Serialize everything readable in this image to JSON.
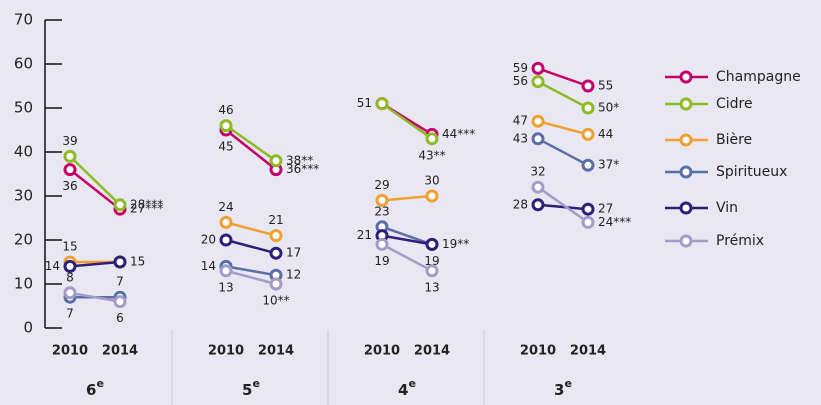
{
  "chart_data": {
    "type": "line",
    "groups": [
      {
        "label": "6",
        "sup": "e"
      },
      {
        "label": "5",
        "sup": "e"
      },
      {
        "label": "4",
        "sup": "e"
      },
      {
        "label": "3",
        "sup": "e"
      }
    ],
    "years": [
      "2010",
      "2014"
    ],
    "ylim": [
      0,
      70
    ],
    "yticks": [
      0,
      10,
      20,
      30,
      40,
      50,
      60,
      70
    ],
    "grid": false,
    "legend": "right",
    "series": [
      {
        "name": "Champagne",
        "color": "#c5006a",
        "values": [
          36,
          27,
          45,
          36,
          51,
          44,
          59,
          55
        ],
        "value_labels": [
          "36",
          "27***",
          "45",
          "36***",
          null,
          "44***",
          "59",
          "55"
        ]
      },
      {
        "name": "Cidre",
        "color": "#8dbb25",
        "values": [
          39,
          28,
          46,
          38,
          51,
          43,
          56,
          50
        ],
        "value_labels": [
          "39",
          "28***",
          "46",
          "38**",
          "51",
          "43**",
          "56",
          "50*"
        ]
      },
      {
        "name": "Bière",
        "color": "#f0a030",
        "values": [
          15,
          15,
          24,
          21,
          29,
          30,
          47,
          44
        ],
        "value_labels": [
          "15",
          null,
          "24",
          "21",
          "29",
          "30",
          "47",
          "44"
        ]
      },
      {
        "name": "Spiritueux",
        "color": "#5a6fa8",
        "values": [
          7,
          7,
          14,
          12,
          23,
          19,
          43,
          37
        ],
        "value_labels": [
          "7",
          "7",
          "14",
          "12",
          "23",
          "19",
          "43",
          "37*"
        ]
      },
      {
        "name": "Vin",
        "color": "#2e1f7a",
        "values": [
          14,
          15,
          20,
          17,
          21,
          19,
          28,
          27
        ],
        "value_labels": [
          "14",
          "15",
          "20",
          "17",
          "21",
          "19**",
          "28",
          "27"
        ]
      },
      {
        "name": "Prémix",
        "color": "#a49bc8",
        "values": [
          8,
          6,
          13,
          10,
          19,
          13,
          32,
          24
        ],
        "value_labels": [
          "8",
          "6",
          "13",
          "10**",
          "19",
          "13",
          "32",
          "24***"
        ]
      }
    ]
  }
}
